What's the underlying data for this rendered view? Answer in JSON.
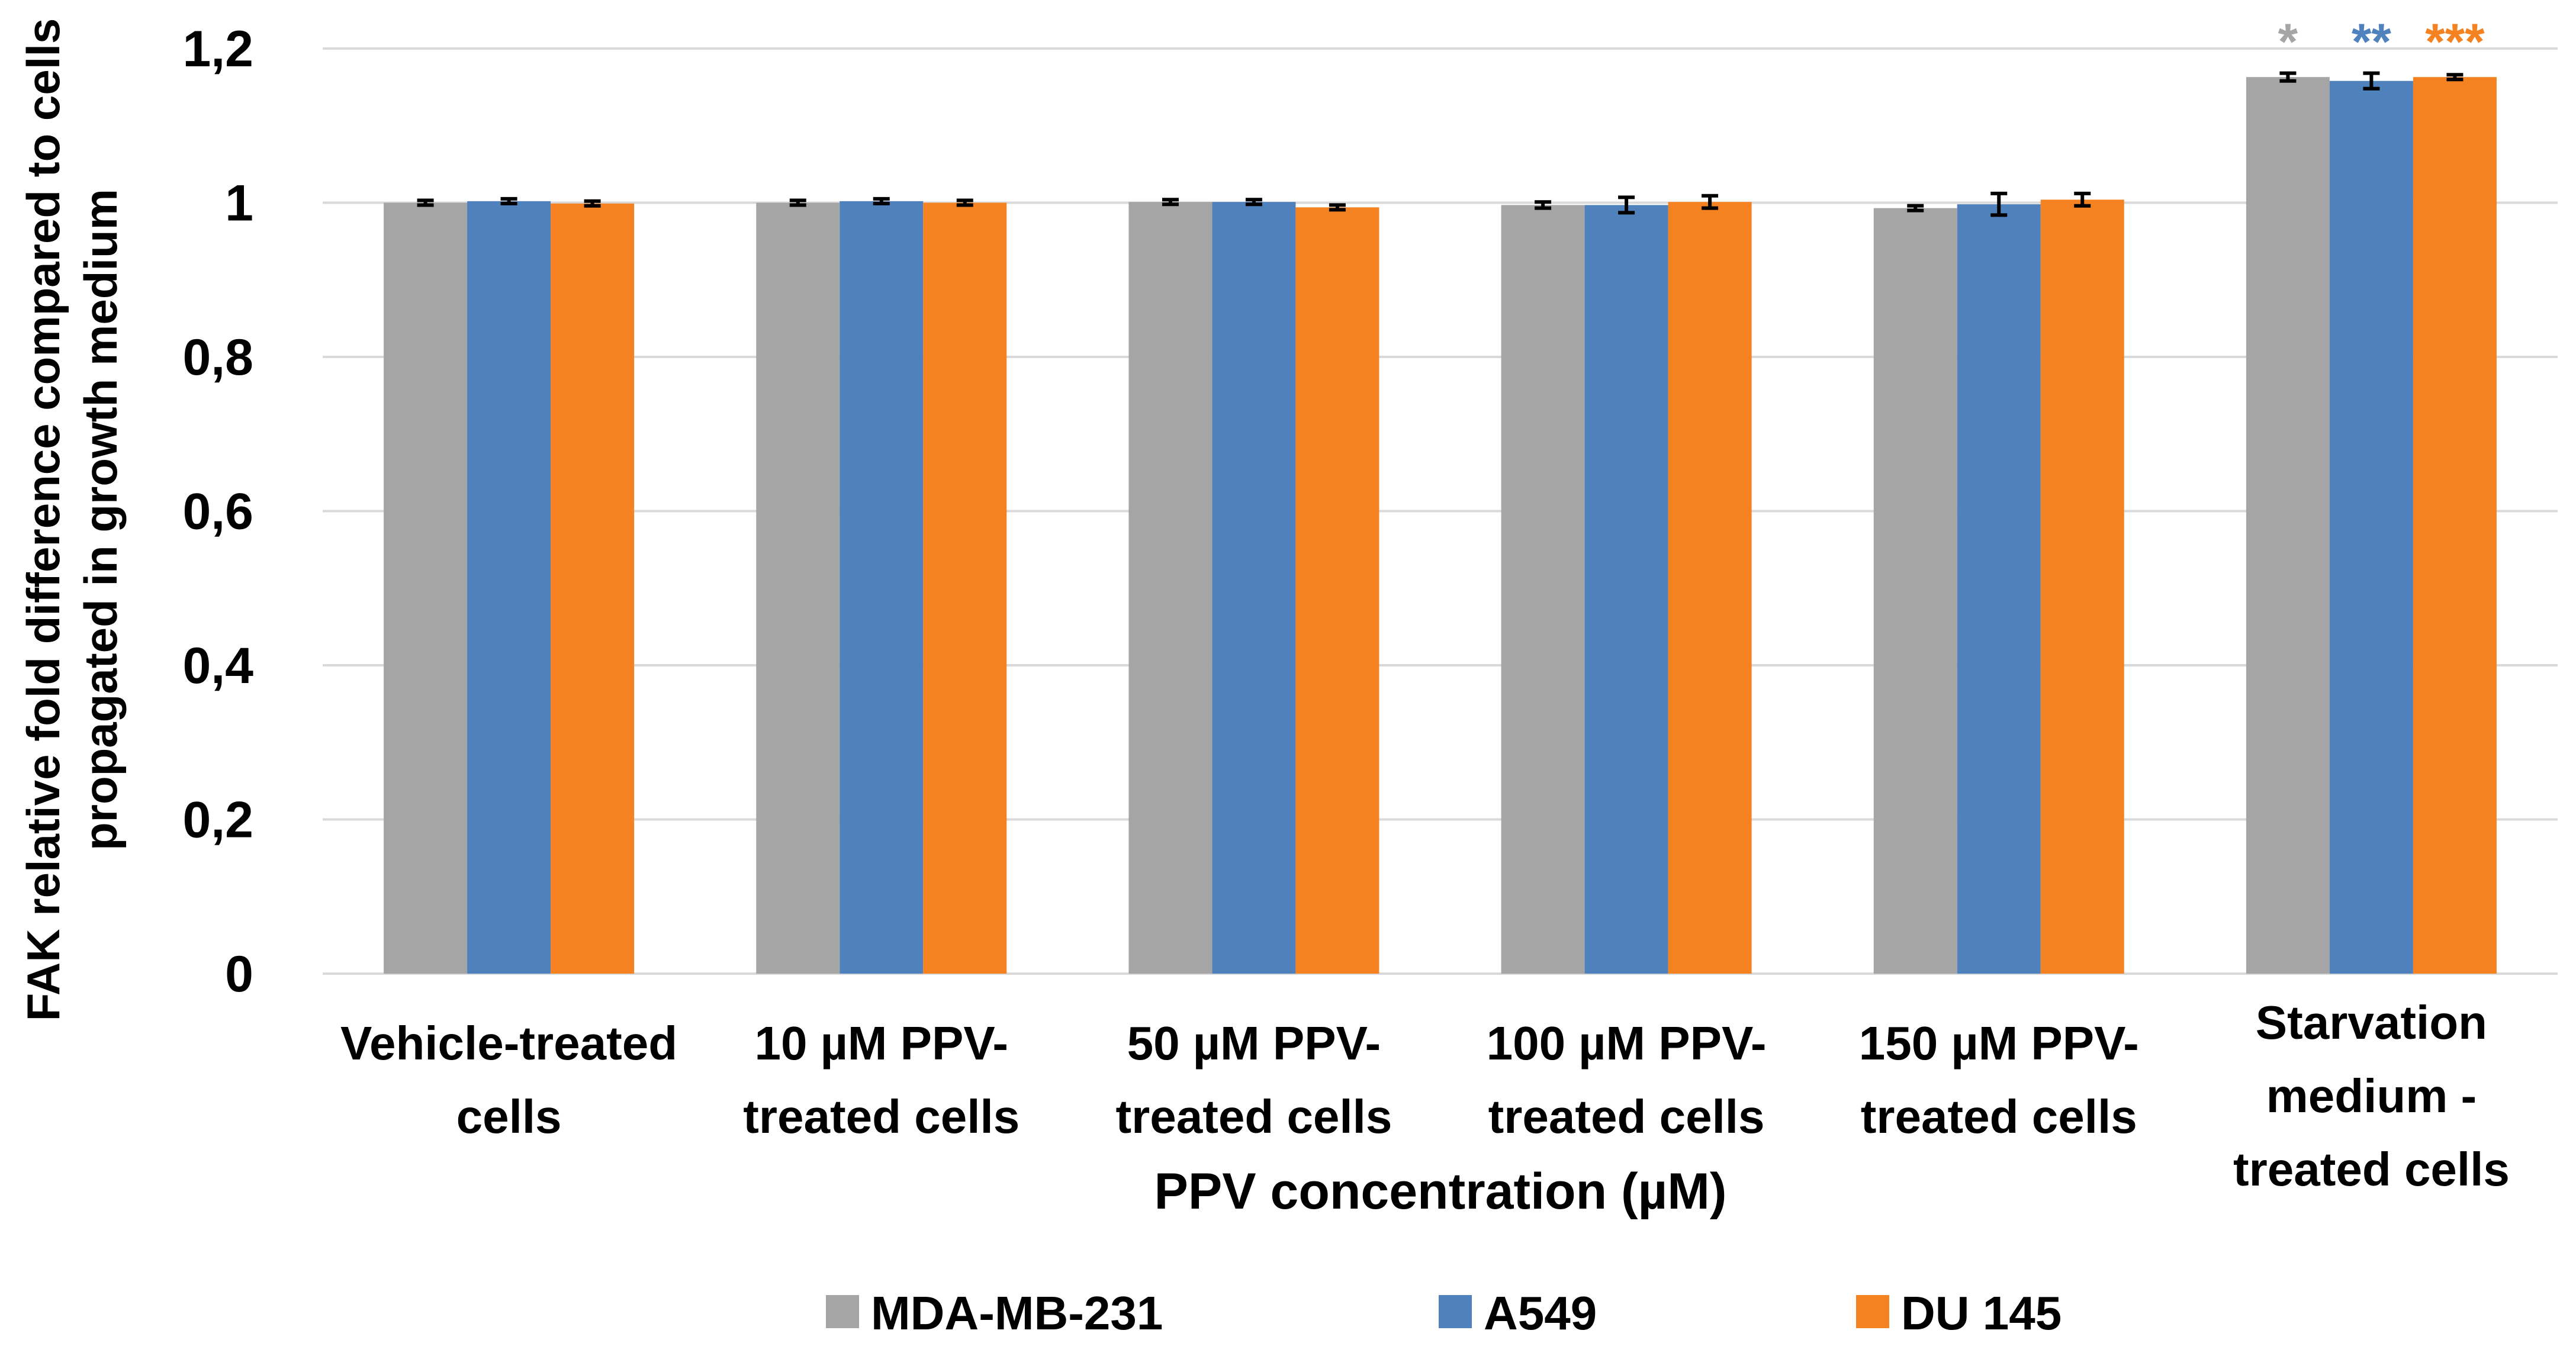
{
  "chart_data": {
    "type": "bar",
    "title": "",
    "xlabel": "PPV concentration (µM)",
    "ylabel": "FAK relative fold difference compared to cells propagated in growth medium",
    "ylabel_lines": [
      "FAK relative fold difference compared to cells",
      "propagated in growth medium"
    ],
    "categories": [
      "Vehicle-treated cells",
      "10 µM PPV-treated cells",
      "50 µM PPV-treated cells",
      "100 µM PPV-treated cells",
      "150 µM PPV-treated cells",
      "Starvation medium - treated cells"
    ],
    "category_lines": [
      [
        "Vehicle-treated",
        "cells"
      ],
      [
        "10 µM PPV-",
        "treated cells"
      ],
      [
        "50 µM PPV-",
        "treated cells"
      ],
      [
        "100 µM PPV-",
        "treated cells"
      ],
      [
        "150 µM PPV-",
        "treated cells"
      ],
      [
        "Starvation",
        "medium -",
        "treated cells"
      ]
    ],
    "ylim": [
      0,
      1.2
    ],
    "yticks": [
      "0",
      "0,2",
      "0,4",
      "0,6",
      "0,8",
      "1",
      "1,2"
    ],
    "ytick_values": [
      0,
      0.2,
      0.4,
      0.6,
      0.8,
      1.0,
      1.2
    ],
    "grid": true,
    "legend_position": "bottom",
    "series": [
      {
        "name": "MDA-MB-231",
        "color": "#a5a5a5",
        "values": [
          1.0,
          1.0,
          1.001,
          0.997,
          0.993,
          1.163
        ],
        "errors": [
          0.002,
          0.002,
          0.002,
          0.004,
          0.003,
          0.005
        ]
      },
      {
        "name": "A549",
        "color": "#4f81bd",
        "values": [
          1.002,
          1.002,
          1.001,
          0.997,
          0.998,
          1.158
        ],
        "errors": [
          0.002,
          0.003,
          0.003,
          0.01,
          0.014,
          0.01
        ]
      },
      {
        "name": "DU 145",
        "color": "#f58220",
        "values": [
          0.999,
          1.0,
          0.994,
          1.001,
          1.004,
          1.163
        ],
        "errors": [
          0.002,
          0.002,
          0.003,
          0.008,
          0.008,
          0.002
        ]
      }
    ],
    "annotations": [
      {
        "category": 5,
        "series": 0,
        "text": "*",
        "color": "#a5a5a5"
      },
      {
        "category": 5,
        "series": 1,
        "text": "**",
        "color": "#4f81bd"
      },
      {
        "category": 5,
        "series": 2,
        "text": "***",
        "color": "#f58220"
      }
    ]
  }
}
